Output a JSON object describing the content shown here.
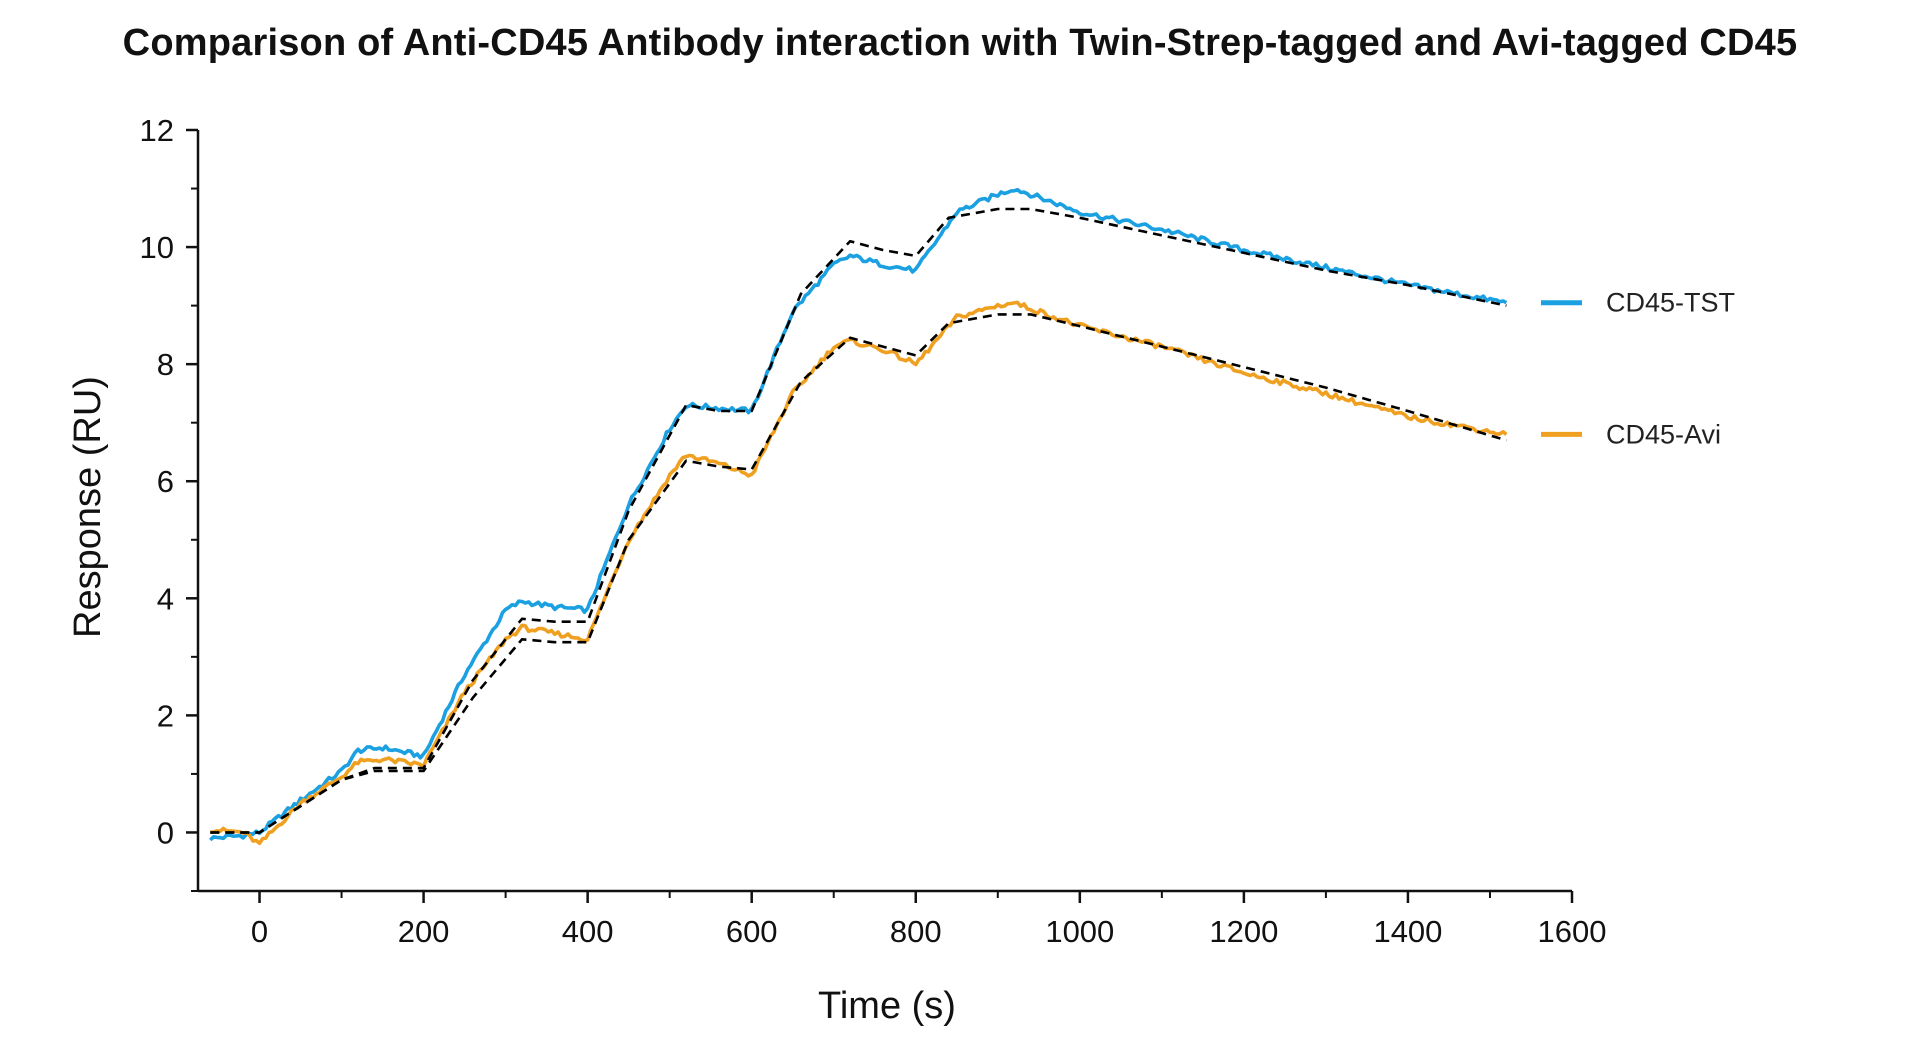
{
  "chart_data": {
    "type": "line",
    "title": "Comparison of Anti-CD45 Antibody interaction with Twin-Strep-tagged and Avi-tagged CD45",
    "xlabel": "Time (s)",
    "ylabel": "Response (RU)",
    "xlim": [
      -75,
      1600
    ],
    "ylim": [
      -1,
      12
    ],
    "xticks": [
      0,
      200,
      400,
      600,
      800,
      1000,
      1200,
      1400,
      1600
    ],
    "yticks": [
      0,
      2,
      4,
      6,
      8,
      10,
      12
    ],
    "grid": false,
    "legend_position": "right",
    "series": [
      {
        "name": "CD45-TST",
        "color": "#1ba0e2",
        "style": "solid",
        "x": [
          -60,
          -20,
          0,
          50,
          100,
          120,
          150,
          200,
          250,
          300,
          320,
          360,
          400,
          450,
          500,
          520,
          560,
          600,
          650,
          700,
          720,
          760,
          800,
          850,
          900,
          920,
          960,
          1000,
          1100,
          1200,
          1300,
          1400,
          1520
        ],
        "y": [
          -0.1,
          -0.05,
          0.0,
          0.55,
          1.05,
          1.4,
          1.45,
          1.3,
          2.7,
          3.8,
          3.95,
          3.85,
          3.8,
          5.6,
          6.9,
          7.3,
          7.25,
          7.2,
          8.9,
          9.7,
          9.85,
          9.7,
          9.6,
          10.6,
          10.9,
          11.0,
          10.8,
          10.6,
          10.3,
          9.95,
          9.65,
          9.35,
          9.05
        ]
      },
      {
        "name": "CD45-Avi",
        "color": "#f0a020",
        "style": "solid",
        "x": [
          -60,
          -20,
          0,
          50,
          100,
          120,
          150,
          200,
          250,
          300,
          320,
          360,
          400,
          450,
          500,
          520,
          560,
          600,
          650,
          700,
          720,
          760,
          800,
          850,
          900,
          920,
          960,
          1000,
          1100,
          1200,
          1300,
          1400,
          1520
        ],
        "y": [
          0.05,
          0.0,
          -0.2,
          0.5,
          0.95,
          1.2,
          1.25,
          1.15,
          2.4,
          3.3,
          3.5,
          3.4,
          3.3,
          5.0,
          6.1,
          6.45,
          6.3,
          6.1,
          7.5,
          8.3,
          8.4,
          8.25,
          8.0,
          8.8,
          9.0,
          9.05,
          8.85,
          8.65,
          8.3,
          7.85,
          7.5,
          7.1,
          6.8
        ]
      },
      {
        "name": "",
        "color": "#000000",
        "style": "dashed",
        "x": [
          -60,
          0,
          100,
          140,
          200,
          260,
          320,
          360,
          400,
          450,
          520,
          560,
          600,
          660,
          720,
          760,
          800,
          840,
          900,
          940,
          1000,
          1100,
          1200,
          1300,
          1400,
          1520
        ],
        "y": [
          0.0,
          0.0,
          0.9,
          1.1,
          1.1,
          2.6,
          3.65,
          3.6,
          3.6,
          5.5,
          7.3,
          7.2,
          7.2,
          9.2,
          10.1,
          9.95,
          9.85,
          10.5,
          10.65,
          10.65,
          10.5,
          10.2,
          9.9,
          9.6,
          9.35,
          9.0
        ]
      },
      {
        "name": "",
        "color": "#000000",
        "style": "dashed",
        "x": [
          -60,
          0,
          100,
          140,
          200,
          260,
          320,
          360,
          400,
          450,
          520,
          560,
          600,
          660,
          720,
          760,
          800,
          840,
          900,
          940,
          1000,
          1100,
          1200,
          1300,
          1400,
          1520
        ],
        "y": [
          0.0,
          0.0,
          0.9,
          1.05,
          1.05,
          2.3,
          3.3,
          3.25,
          3.25,
          5.0,
          6.35,
          6.25,
          6.2,
          7.7,
          8.45,
          8.3,
          8.15,
          8.7,
          8.85,
          8.85,
          8.65,
          8.3,
          7.95,
          7.6,
          7.2,
          6.7
        ]
      }
    ]
  }
}
